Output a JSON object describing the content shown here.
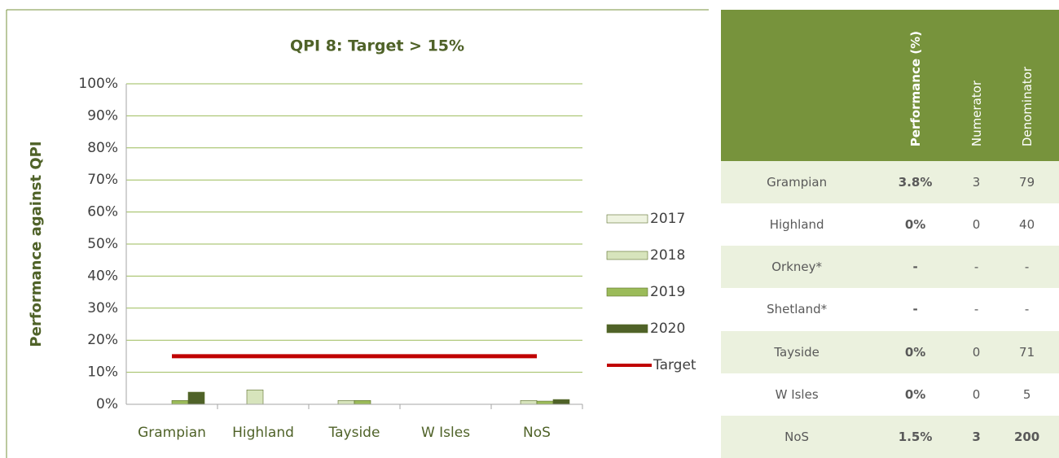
{
  "chart_data": {
    "type": "bar",
    "title": "QPI 8: Target > 15%",
    "ylabel": "Performance against QPI",
    "categories": [
      "Grampian",
      "Highland",
      "Tayside",
      "W Isles",
      "NoS"
    ],
    "series": [
      {
        "name": "2017",
        "color": "#eef3e0",
        "values": [
          0,
          0,
          0,
          0,
          0
        ]
      },
      {
        "name": "2018",
        "color": "#d7e4bc",
        "values": [
          0,
          4.5,
          1.2,
          0,
          1.2
        ]
      },
      {
        "name": "2019",
        "color": "#9bbb59",
        "values": [
          1.2,
          0,
          1.2,
          0,
          1.0
        ]
      },
      {
        "name": "2020",
        "color": "#4f6228",
        "values": [
          3.8,
          0,
          0,
          0,
          1.5
        ]
      }
    ],
    "target": {
      "name": "Target",
      "value": 15,
      "color": "#c00000"
    },
    "ylim": [
      0,
      100
    ],
    "yticks": [
      {
        "value": 0,
        "label": "0%"
      },
      {
        "value": 10,
        "label": "10%"
      },
      {
        "value": 20,
        "label": "20%"
      },
      {
        "value": 30,
        "label": "30%"
      },
      {
        "value": 40,
        "label": "40%"
      },
      {
        "value": 50,
        "label": "50%"
      },
      {
        "value": 60,
        "label": "60%"
      },
      {
        "value": 70,
        "label": "70%"
      },
      {
        "value": 80,
        "label": "80%"
      },
      {
        "value": 90,
        "label": "90%"
      },
      {
        "value": 100,
        "label": "100%"
      }
    ],
    "grid": true
  },
  "table": {
    "columns": [
      "Performance (%)",
      "Numerator",
      "Denominator"
    ],
    "rows": [
      [
        "Grampian",
        "3.8%",
        "3",
        "79"
      ],
      [
        "Highland",
        "0%",
        "0",
        "40"
      ],
      [
        "Orkney*",
        "-",
        "-",
        "-"
      ],
      [
        "Shetland*",
        "-",
        "-",
        "-"
      ],
      [
        "Tayside",
        "0%",
        "0",
        "71"
      ],
      [
        "W Isles",
        "0%",
        "0",
        "5"
      ],
      [
        "NoS",
        "1.5%",
        "3",
        "200"
      ]
    ]
  }
}
